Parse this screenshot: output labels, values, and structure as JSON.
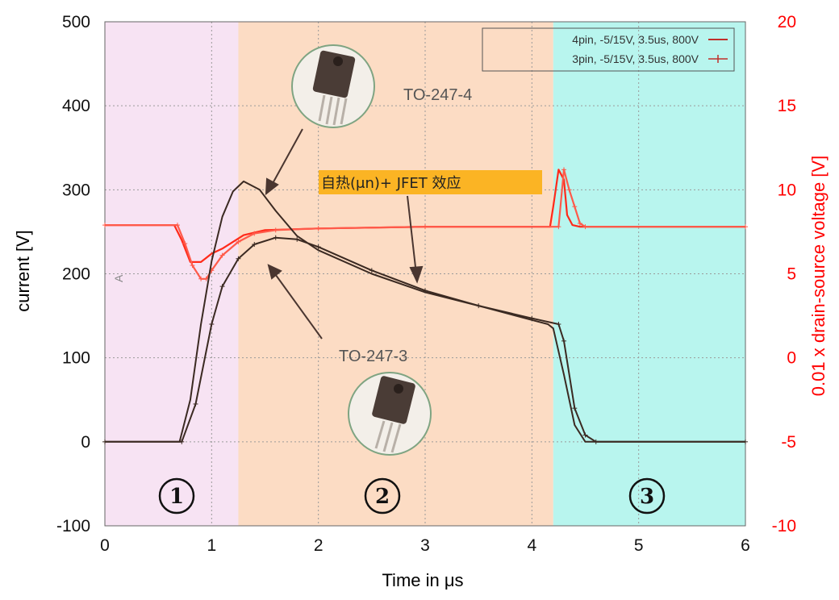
{
  "chart_data": {
    "type": "line",
    "xlabel": "Time in μs",
    "ylabel": "current [V]",
    "y2label": "0.01 x drain-source voltage [V]",
    "xlim": [
      0,
      6
    ],
    "ylim": [
      -100,
      500
    ],
    "y2lim": [
      -10,
      20
    ],
    "x_ticks": [
      "0",
      "1",
      "2",
      "3",
      "4",
      "5",
      "6"
    ],
    "y_ticks": [
      "-100",
      "0",
      "100",
      "200",
      "300",
      "400",
      "500"
    ],
    "y2_ticks": [
      "-10",
      "-5",
      "0",
      "5",
      "10",
      "15",
      "20"
    ],
    "grid": true,
    "legend_position": "top-right",
    "colors": {
      "current": "#3b2a22",
      "voltage_4pin": "#ff2a1a",
      "voltage_3pin": "#ff5a4a",
      "right_axis": "#ff0000",
      "region1": "#f7e3f3",
      "region2": "#fcdcc4",
      "region3": "#b8f5ee",
      "callout": "#fbb424",
      "circle": "#7fa482"
    },
    "regions": [
      {
        "label": "①",
        "x_start": 0,
        "x_end": 1.25
      },
      {
        "label": "②",
        "x_start": 1.25,
        "x_end": 4.2
      },
      {
        "label": "③",
        "x_start": 4.2,
        "x_end": 6
      }
    ],
    "series": [
      {
        "name": "4pin, -5/15V, 3.5us, 800V",
        "axis": "y2",
        "style": "line",
        "x": [
          0,
          0.65,
          0.72,
          0.8,
          0.9,
          1.0,
          1.1,
          1.2,
          1.3,
          1.5,
          2.0,
          3.0,
          4.17,
          4.2,
          4.25,
          4.3,
          4.33,
          4.38,
          4.45,
          6.0
        ],
        "values": [
          7.9,
          7.9,
          7.0,
          5.7,
          5.7,
          6.2,
          6.5,
          6.9,
          7.3,
          7.6,
          7.7,
          7.8,
          7.8,
          9.0,
          11.2,
          10.6,
          8.5,
          7.9,
          7.8,
          7.8
        ]
      },
      {
        "name": "3pin, -5/15V, 3.5us, 800V",
        "axis": "y2",
        "style": "plus",
        "x": [
          0,
          0.68,
          0.75,
          0.82,
          0.9,
          0.95,
          1.0,
          1.1,
          1.25,
          1.4,
          1.6,
          2.0,
          3.0,
          4.25,
          4.3,
          4.35,
          4.4,
          4.45,
          4.5,
          6.0
        ],
        "values": [
          7.9,
          7.9,
          6.8,
          5.5,
          4.7,
          4.7,
          5.2,
          6.1,
          6.9,
          7.4,
          7.6,
          7.7,
          7.8,
          7.8,
          11.2,
          10.0,
          9.0,
          8.0,
          7.8,
          7.8
        ]
      },
      {
        "name": "TO-247-4",
        "axis": "y",
        "style": "line",
        "x": [
          0,
          0.7,
          0.8,
          0.9,
          1.0,
          1.1,
          1.2,
          1.3,
          1.45,
          1.6,
          1.8,
          2.0,
          2.5,
          3.0,
          3.5,
          4.0,
          4.15,
          4.2,
          4.3,
          4.4,
          4.5,
          6.0
        ],
        "values": [
          0,
          0,
          50,
          140,
          215,
          268,
          298,
          310,
          300,
          275,
          245,
          228,
          200,
          178,
          162,
          145,
          140,
          135,
          80,
          20,
          0,
          0
        ]
      },
      {
        "name": "TO-247-3",
        "axis": "y",
        "style": "plus",
        "x": [
          0,
          0.72,
          0.85,
          1.0,
          1.1,
          1.25,
          1.4,
          1.6,
          1.8,
          2.0,
          2.5,
          3.0,
          3.5,
          4.0,
          4.25,
          4.3,
          4.4,
          4.5,
          4.6,
          6.0
        ],
        "values": [
          0,
          0,
          45,
          140,
          185,
          218,
          235,
          243,
          241,
          232,
          204,
          180,
          162,
          147,
          140,
          120,
          40,
          8,
          0,
          0
        ]
      }
    ],
    "annotations": {
      "label_4pin": "TO-247-4",
      "label_3pin": "TO-247-3",
      "callout": "自热(μn)+ JFET 效应",
      "marker": "A"
    }
  }
}
